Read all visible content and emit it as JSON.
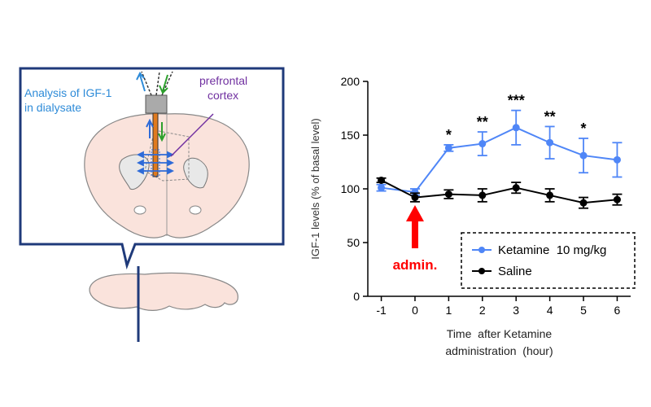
{
  "illustration": {
    "analysis_label_line1": "Analysis of IGF-1",
    "analysis_label_line2": "in dialysate",
    "region_label_line1": "prefrontal",
    "region_label_line2": "cortex"
  },
  "colors": {
    "ketamine": "#4f86f7",
    "saline": "#000000",
    "admin_arrow": "#ff0000",
    "callout_border": "#1f3a7a",
    "brain_fill": "#fae3dc",
    "probe": "#e07a1e",
    "analysis_text": "#2e8bd8",
    "region_text": "#7030a0",
    "inflow_arrow": "#2ca02c"
  },
  "chart_data": {
    "type": "line",
    "xlabel_line1": "Time  after Ketamine",
    "xlabel_line2": "administration  (hour)",
    "ylabel": "IGF-1 levels  (% of basal level)",
    "x": [
      -1,
      0,
      1,
      2,
      3,
      4,
      5,
      6
    ],
    "xticks": [
      "-1",
      "0",
      "1",
      "2",
      "3",
      "4",
      "5",
      "6"
    ],
    "yticks": [
      "0",
      "50",
      "100",
      "150",
      "200"
    ],
    "ylim": [
      0,
      200
    ],
    "xlim": [
      -1.4,
      6.4
    ],
    "legend_position": "lower-right",
    "series": [
      {
        "name": "Ketamine  10 mg/kg",
        "color": "#4f86f7",
        "y": [
          101,
          97,
          138,
          142,
          157,
          143,
          131,
          127
        ],
        "err": [
          3,
          3,
          3,
          11,
          16,
          15,
          16,
          16
        ]
      },
      {
        "name": "Saline",
        "color": "#000000",
        "y": [
          108,
          92,
          95,
          94,
          101,
          94,
          87,
          90
        ],
        "err": [
          2,
          4,
          4,
          6,
          5,
          6,
          5,
          5
        ]
      }
    ],
    "significance": [
      {
        "x": 1,
        "label": "*"
      },
      {
        "x": 2,
        "label": "**"
      },
      {
        "x": 3,
        "label": "***"
      },
      {
        "x": 4,
        "label": "**"
      },
      {
        "x": 5,
        "label": "*"
      }
    ],
    "annotation": {
      "label": "admin.",
      "x": 0
    }
  }
}
